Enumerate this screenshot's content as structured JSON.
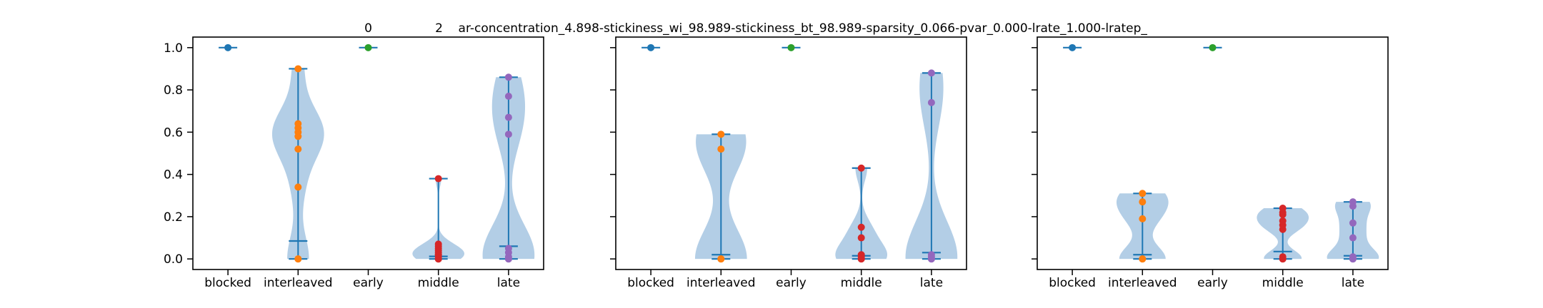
{
  "chart_data": {
    "type": "violin",
    "categories": [
      "blocked",
      "interleaved",
      "early",
      "middle",
      "late"
    ],
    "category_colors": [
      "#1f77b4",
      "#ff7f0e",
      "#2ca02c",
      "#d62728",
      "#9467bd"
    ],
    "violin_color": "#1f77b4",
    "violin_fill": "#a6c6e2",
    "ylim": [
      -0.05,
      1.05
    ],
    "yticks": [
      0.0,
      0.2,
      0.4,
      0.6,
      0.8,
      1.0
    ],
    "ytick_labels": [
      "0.0",
      "0.2",
      "0.4",
      "0.6",
      "0.8",
      "1.0"
    ],
    "grid": false,
    "panels": [
      {
        "title": "0",
        "groups": [
          {
            "points": [
              1.0
            ],
            "mean": 1.0
          },
          {
            "points": [
              0.0,
              0.0,
              0.34,
              0.52,
              0.58,
              0.6,
              0.62,
              0.64,
              0.9
            ],
            "mean": 0.085
          },
          {
            "points": [
              1.0
            ],
            "mean": 1.0
          },
          {
            "points": [
              0.0,
              0.0,
              0.0,
              0.01,
              0.02,
              0.02,
              0.03,
              0.04,
              0.05,
              0.06,
              0.07,
              0.38
            ],
            "mean": 0.012
          },
          {
            "points": [
              0.0,
              0.0,
              0.01,
              0.03,
              0.05,
              0.59,
              0.67,
              0.77,
              0.86
            ],
            "mean": 0.06
          }
        ]
      },
      {
        "title": "2    ar-concentration_4.898-stickiness_wi_98.989-stickiness_bt_98.989-sparsity_0.066-pvar_0.000-lrate_1.000-lratep_",
        "groups": [
          {
            "points": [
              1.0
            ],
            "mean": 1.0
          },
          {
            "points": [
              0.0,
              0.0,
              0.52,
              0.59
            ],
            "mean": 0.02
          },
          {
            "points": [
              1.0
            ],
            "mean": 1.0
          },
          {
            "points": [
              0.0,
              0.0,
              0.01,
              0.02,
              0.1,
              0.15,
              0.43
            ],
            "mean": 0.015
          },
          {
            "points": [
              0.0,
              0.0,
              0.01,
              0.02,
              0.74,
              0.88
            ],
            "mean": 0.03
          }
        ]
      },
      {
        "title": "",
        "groups": [
          {
            "points": [
              1.0
            ],
            "mean": 1.0
          },
          {
            "points": [
              0.0,
              0.0,
              0.19,
              0.27,
              0.31
            ],
            "mean": 0.02
          },
          {
            "points": [
              1.0
            ],
            "mean": 1.0
          },
          {
            "points": [
              0.0,
              0.0,
              0.01,
              0.14,
              0.16,
              0.18,
              0.21,
              0.22,
              0.24
            ],
            "mean": 0.035
          },
          {
            "points": [
              0.0,
              0.0,
              0.01,
              0.1,
              0.17,
              0.25,
              0.27
            ],
            "mean": 0.015
          }
        ]
      }
    ]
  }
}
